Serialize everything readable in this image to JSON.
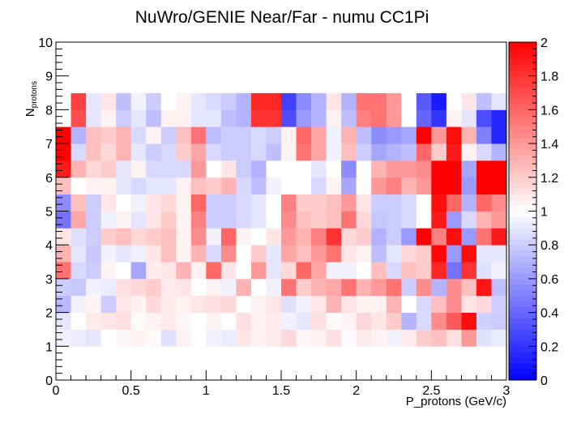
{
  "chart_data": {
    "type": "heatmap",
    "title": "NuWro/GENIE Near/Far - numu CC1Pi",
    "xlabel": "P_protons (GeV/c)",
    "ylabel_main": "N",
    "ylabel_sub": "protons",
    "xlim": [
      0,
      3
    ],
    "ylim": [
      0,
      10
    ],
    "zlim": [
      0,
      2
    ],
    "x_ticks": [
      "0",
      "0.5",
      "1",
      "1.5",
      "2",
      "2.5",
      "3"
    ],
    "y_ticks": [
      "0",
      "1",
      "2",
      "3",
      "4",
      "5",
      "6",
      "7",
      "8",
      "9",
      "10"
    ],
    "z_ticks": [
      "0",
      "0.2",
      "0.4",
      "0.6",
      "0.8",
      "1",
      "1.2",
      "1.4",
      "1.6",
      "1.8",
      "2"
    ],
    "x_bins": 30,
    "y_bin_edges": [
      0,
      1,
      1.5,
      2,
      2.5,
      3,
      3.5,
      4,
      4.5,
      5,
      5.5,
      6,
      6.5,
      7,
      7.5,
      8,
      8.5,
      9,
      9.5,
      10
    ],
    "colormap": [
      "#0000ff",
      "#ffffff",
      "#ff0000"
    ],
    "z": [
      [
        1.0,
        1.0,
        1.0,
        1.0,
        1.0,
        1.0,
        1.0,
        1.0,
        1.0,
        1.0,
        1.0,
        1.0,
        1.0,
        1.0,
        1.0,
        1.0,
        1.0,
        1.0,
        1.0,
        1.0,
        1.0,
        1.0,
        1.0,
        1.0,
        1.0,
        1.0,
        1.0,
        1.0,
        1.0,
        1.0
      ],
      [
        0.95,
        0.92,
        0.9,
        1.0,
        1.03,
        1.05,
        1.02,
        0.88,
        1.05,
        1.0,
        0.95,
        0.92,
        1.1,
        1.05,
        1.08,
        1.15,
        1.03,
        1.05,
        1.12,
        0.98,
        1.08,
        1.05,
        0.95,
        1.08,
        1.2,
        1.25,
        1.12,
        1.4,
        0.88,
        0.92
      ],
      [
        0.9,
        1.0,
        1.08,
        1.1,
        1.12,
        1.02,
        1.05,
        1.08,
        1.03,
        1.0,
        1.05,
        1.0,
        1.12,
        1.05,
        1.08,
        0.95,
        0.9,
        1.12,
        1.02,
        1.05,
        1.15,
        1.1,
        1.2,
        0.7,
        0.85,
        1.45,
        1.65,
        1.95,
        0.82,
        0.8
      ],
      [
        0.72,
        0.95,
        1.05,
        0.8,
        1.1,
        1.05,
        1.15,
        1.08,
        1.05,
        1.1,
        1.12,
        1.15,
        1.0,
        1.05,
        1.1,
        0.88,
        0.95,
        1.1,
        1.3,
        1.1,
        1.05,
        1.05,
        1.3,
        1.0,
        0.85,
        1.25,
        1.45,
        1.1,
        1.15,
        0.82
      ],
      [
        0.8,
        0.78,
        0.95,
        0.92,
        1.12,
        1.15,
        1.2,
        1.08,
        1.1,
        1.0,
        1.05,
        0.95,
        1.3,
        1.0,
        0.95,
        1.55,
        1.2,
        1.3,
        1.35,
        1.55,
        1.3,
        1.4,
        1.55,
        0.8,
        1.45,
        0.7,
        1.45,
        1.25,
        1.92,
        0.75
      ],
      [
        1.55,
        0.85,
        0.8,
        1.05,
        1.0,
        0.65,
        1.08,
        1.1,
        1.3,
        1.05,
        1.6,
        1.1,
        1.0,
        1.4,
        0.9,
        1.15,
        1.6,
        1.35,
        0.95,
        0.95,
        1.0,
        1.25,
        0.85,
        1.25,
        1.2,
        1.85,
        0.45,
        1.8,
        0.88,
        0.95
      ],
      [
        1.3,
        0.9,
        0.78,
        0.95,
        0.9,
        0.95,
        1.1,
        1.25,
        1.05,
        1.3,
        0.85,
        1.45,
        1.0,
        1.2,
        0.9,
        1.35,
        1.25,
        1.4,
        1.55,
        1.1,
        1.05,
        0.75,
        0.9,
        1.15,
        1.2,
        1.98,
        0.6,
        1.95,
        0.9,
        0.9
      ],
      [
        1.1,
        0.88,
        0.8,
        1.2,
        1.25,
        1.15,
        1.2,
        1.25,
        1.05,
        1.45,
        0.95,
        1.6,
        1.05,
        1.0,
        1.1,
        1.4,
        1.3,
        1.5,
        1.8,
        1.15,
        1.2,
        0.7,
        0.8,
        0.6,
        2.0,
        1.5,
        1.95,
        0.6,
        1.55,
        1.9
      ],
      [
        0.45,
        1.35,
        0.8,
        0.95,
        1.05,
        0.9,
        1.1,
        1.2,
        1.05,
        1.5,
        0.8,
        0.8,
        0.85,
        0.9,
        1.0,
        1.45,
        1.25,
        1.2,
        1.25,
        1.55,
        1.15,
        0.78,
        0.8,
        0.85,
        1.0,
        1.9,
        0.6,
        0.85,
        1.3,
        1.4
      ],
      [
        0.55,
        1.25,
        0.8,
        1.1,
        1.0,
        0.95,
        1.1,
        1.15,
        1.05,
        1.6,
        0.8,
        0.8,
        0.85,
        0.9,
        1.0,
        1.5,
        1.2,
        1.2,
        1.25,
        1.4,
        1.1,
        0.8,
        0.8,
        0.85,
        1.0,
        1.95,
        1.6,
        0.7,
        1.6,
        1.45
      ],
      [
        1.25,
        1.0,
        1.05,
        1.05,
        0.9,
        0.85,
        0.9,
        0.9,
        1.05,
        1.25,
        1.2,
        1.3,
        0.85,
        0.75,
        0.95,
        1.0,
        1.0,
        0.85,
        1.05,
        0.65,
        1.0,
        1.4,
        1.5,
        1.3,
        1.4,
        2.0,
        2.0,
        0.6,
        2.0,
        2.0
      ],
      [
        1.9,
        1.3,
        1.15,
        1.2,
        0.9,
        1.05,
        0.85,
        0.85,
        0.85,
        1.4,
        1.0,
        1.1,
        0.8,
        0.7,
        1.0,
        1.0,
        1.0,
        0.9,
        1.0,
        0.55,
        1.0,
        1.3,
        1.4,
        1.4,
        1.45,
        2.0,
        2.0,
        0.65,
        2.0,
        2.0
      ],
      [
        2.0,
        0.85,
        1.25,
        1.15,
        1.3,
        0.9,
        0.8,
        0.85,
        1.2,
        1.35,
        0.85,
        0.8,
        0.8,
        0.85,
        0.75,
        1.05,
        1.55,
        1.35,
        0.95,
        1.25,
        0.8,
        0.65,
        0.7,
        0.75,
        1.6,
        1.2,
        1.9,
        1.05,
        0.85,
        0.7
      ],
      [
        2.0,
        0.7,
        1.25,
        1.2,
        1.3,
        0.85,
        1.05,
        0.8,
        1.25,
        1.55,
        0.75,
        0.8,
        0.8,
        0.85,
        0.8,
        1.05,
        1.6,
        1.35,
        0.95,
        1.3,
        0.75,
        0.55,
        0.6,
        0.65,
        2.0,
        1.4,
        1.95,
        1.3,
        0.5,
        0.15
      ],
      [
        1.0,
        1.7,
        0.9,
        1.05,
        0.8,
        0.9,
        0.75,
        1.05,
        1.05,
        0.9,
        0.9,
        0.75,
        0.7,
        1.8,
        1.8,
        0.3,
        0.6,
        0.7,
        1.05,
        0.75,
        1.5,
        1.55,
        1.4,
        1.0,
        0.4,
        0.2,
        1.05,
        0.9,
        0.3,
        0.15
      ],
      [
        1.0,
        1.75,
        0.9,
        1.1,
        0.75,
        0.95,
        0.8,
        1.0,
        1.05,
        0.9,
        0.85,
        0.8,
        0.7,
        1.85,
        1.85,
        0.25,
        0.55,
        0.7,
        1.1,
        0.7,
        1.55,
        1.55,
        1.4,
        1.0,
        0.35,
        0.1,
        1.0,
        1.1,
        0.75,
        0.9
      ],
      [
        1.0,
        1.0,
        1.0,
        1.0,
        1.0,
        1.0,
        1.0,
        1.0,
        1.0,
        1.0,
        1.0,
        1.0,
        1.0,
        1.0,
        1.0,
        1.0,
        1.0,
        1.0,
        1.0,
        1.0,
        1.0,
        1.0,
        1.0,
        1.0,
        1.0,
        1.0,
        1.0,
        1.0,
        1.0,
        1.0
      ],
      [
        1.0,
        1.0,
        1.0,
        1.0,
        1.0,
        1.0,
        1.0,
        1.0,
        1.0,
        1.0,
        1.0,
        1.0,
        1.0,
        1.0,
        1.0,
        1.0,
        1.0,
        1.0,
        1.0,
        1.0,
        1.0,
        1.0,
        1.0,
        1.0,
        1.0,
        1.0,
        1.0,
        1.0,
        1.0,
        1.0
      ],
      [
        1.0,
        1.0,
        1.0,
        1.0,
        1.0,
        1.0,
        1.0,
        1.0,
        1.0,
        1.0,
        1.0,
        1.0,
        1.0,
        1.0,
        1.0,
        1.0,
        1.0,
        1.0,
        1.0,
        1.0,
        1.0,
        1.0,
        1.0,
        1.0,
        1.0,
        1.0,
        1.0,
        1.0,
        1.0,
        1.0
      ]
    ]
  }
}
